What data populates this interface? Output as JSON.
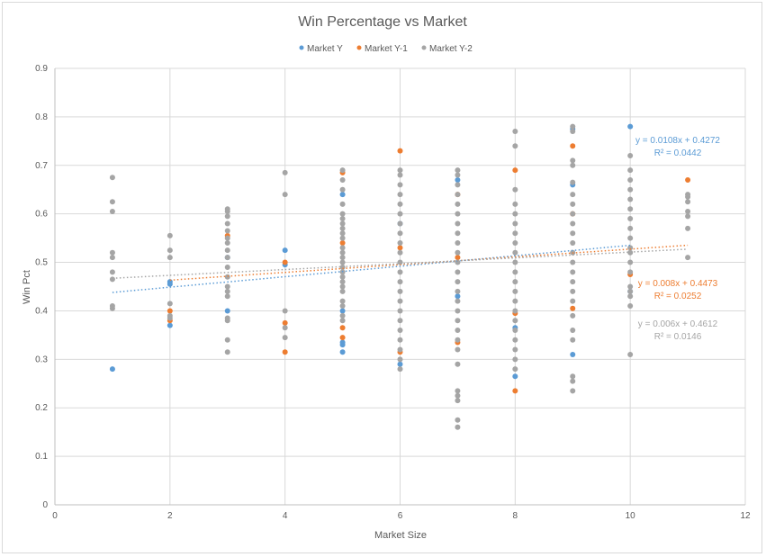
{
  "chart_data": {
    "type": "scatter",
    "title": "Win Percentage vs Market",
    "xlabel": "Market Size",
    "ylabel": "Win Pct",
    "xlim": [
      0,
      12
    ],
    "ylim": [
      0,
      0.9
    ],
    "xticks": [
      0,
      2,
      4,
      6,
      8,
      10,
      12
    ],
    "yticks": [
      0,
      0.1,
      0.2,
      0.3,
      0.4,
      0.5,
      0.6,
      0.7,
      0.8,
      0.9
    ],
    "x_tick_labels": [
      "0",
      "2",
      "4",
      "6",
      "8",
      "10",
      "12"
    ],
    "y_tick_labels": [
      "0",
      "0.1",
      "0.2",
      "0.3",
      "0.4",
      "0.5",
      "0.6",
      "0.7",
      "0.8",
      "0.9"
    ],
    "grid": true,
    "legend_position": "top",
    "series": [
      {
        "name": "Market Y",
        "color": "#5b9bd5",
        "points": [
          [
            1,
            0.28
          ],
          [
            2,
            0.37
          ],
          [
            2,
            0.46
          ],
          [
            2,
            0.455
          ],
          [
            3,
            0.4
          ],
          [
            3,
            0.51
          ],
          [
            4,
            0.525
          ],
          [
            4,
            0.495
          ],
          [
            5,
            0.315
          ],
          [
            5,
            0.33
          ],
          [
            5,
            0.335
          ],
          [
            5,
            0.4
          ],
          [
            5,
            0.64
          ],
          [
            6,
            0.29
          ],
          [
            6,
            0.58
          ],
          [
            7,
            0.43
          ],
          [
            7,
            0.67
          ],
          [
            8,
            0.265
          ],
          [
            8,
            0.365
          ],
          [
            9,
            0.31
          ],
          [
            9,
            0.66
          ],
          [
            9,
            0.775
          ],
          [
            10,
            0.44
          ],
          [
            10,
            0.78
          ]
        ],
        "trend": {
          "slope": 0.0108,
          "intercept": 0.4272,
          "equation": "y = 0.0108x + 0.4272",
          "r2": "R² = 0.0442"
        }
      },
      {
        "name": "Market Y-1",
        "color": "#ed7d31",
        "points": [
          [
            2,
            0.4
          ],
          [
            2,
            0.38
          ],
          [
            3,
            0.555
          ],
          [
            4,
            0.315
          ],
          [
            4,
            0.375
          ],
          [
            4,
            0.5
          ],
          [
            5,
            0.345
          ],
          [
            5,
            0.365
          ],
          [
            5,
            0.54
          ],
          [
            5,
            0.685
          ],
          [
            6,
            0.315
          ],
          [
            6,
            0.53
          ],
          [
            6,
            0.73
          ],
          [
            7,
            0.335
          ],
          [
            7,
            0.51
          ],
          [
            7,
            0.64
          ],
          [
            8,
            0.235
          ],
          [
            8,
            0.395
          ],
          [
            8,
            0.69
          ],
          [
            9,
            0.405
          ],
          [
            9,
            0.6
          ],
          [
            9,
            0.74
          ],
          [
            10,
            0.475
          ],
          [
            11,
            0.67
          ]
        ],
        "trend": {
          "slope": 0.008,
          "intercept": 0.4473,
          "equation": "y = 0.008x + 0.4473",
          "r2": "R² = 0.0252"
        }
      },
      {
        "name": "Market Y-2",
        "color": "#a5a5a5",
        "points": [
          [
            1,
            0.405
          ],
          [
            1,
            0.41
          ],
          [
            1,
            0.465
          ],
          [
            1,
            0.48
          ],
          [
            1,
            0.51
          ],
          [
            1,
            0.52
          ],
          [
            1,
            0.605
          ],
          [
            1,
            0.625
          ],
          [
            1,
            0.675
          ],
          [
            2,
            0.385
          ],
          [
            2,
            0.39
          ],
          [
            2,
            0.415
          ],
          [
            2,
            0.51
          ],
          [
            2,
            0.525
          ],
          [
            2,
            0.555
          ],
          [
            3,
            0.315
          ],
          [
            3,
            0.34
          ],
          [
            3,
            0.38
          ],
          [
            3,
            0.385
          ],
          [
            3,
            0.43
          ],
          [
            3,
            0.44
          ],
          [
            3,
            0.45
          ],
          [
            3,
            0.47
          ],
          [
            3,
            0.49
          ],
          [
            3,
            0.51
          ],
          [
            3,
            0.525
          ],
          [
            3,
            0.54
          ],
          [
            3,
            0.55
          ],
          [
            3,
            0.565
          ],
          [
            3,
            0.58
          ],
          [
            3,
            0.595
          ],
          [
            3,
            0.605
          ],
          [
            3,
            0.61
          ],
          [
            4,
            0.345
          ],
          [
            4,
            0.365
          ],
          [
            4,
            0.4
          ],
          [
            4,
            0.64
          ],
          [
            4,
            0.685
          ],
          [
            5,
            0.38
          ],
          [
            5,
            0.39
          ],
          [
            5,
            0.41
          ],
          [
            5,
            0.42
          ],
          [
            5,
            0.44
          ],
          [
            5,
            0.45
          ],
          [
            5,
            0.46
          ],
          [
            5,
            0.47
          ],
          [
            5,
            0.48
          ],
          [
            5,
            0.49
          ],
          [
            5,
            0.5
          ],
          [
            5,
            0.51
          ],
          [
            5,
            0.52
          ],
          [
            5,
            0.53
          ],
          [
            5,
            0.55
          ],
          [
            5,
            0.56
          ],
          [
            5,
            0.57
          ],
          [
            5,
            0.58
          ],
          [
            5,
            0.59
          ],
          [
            5,
            0.6
          ],
          [
            5,
            0.62
          ],
          [
            5,
            0.65
          ],
          [
            5,
            0.67
          ],
          [
            5,
            0.69
          ],
          [
            6,
            0.28
          ],
          [
            6,
            0.3
          ],
          [
            6,
            0.32
          ],
          [
            6,
            0.34
          ],
          [
            6,
            0.36
          ],
          [
            6,
            0.38
          ],
          [
            6,
            0.4
          ],
          [
            6,
            0.42
          ],
          [
            6,
            0.44
          ],
          [
            6,
            0.46
          ],
          [
            6,
            0.48
          ],
          [
            6,
            0.5
          ],
          [
            6,
            0.52
          ],
          [
            6,
            0.54
          ],
          [
            6,
            0.56
          ],
          [
            6,
            0.58
          ],
          [
            6,
            0.6
          ],
          [
            6,
            0.62
          ],
          [
            6,
            0.64
          ],
          [
            6,
            0.66
          ],
          [
            6,
            0.68
          ],
          [
            6,
            0.69
          ],
          [
            7,
            0.16
          ],
          [
            7,
            0.175
          ],
          [
            7,
            0.215
          ],
          [
            7,
            0.225
          ],
          [
            7,
            0.235
          ],
          [
            7,
            0.29
          ],
          [
            7,
            0.32
          ],
          [
            7,
            0.34
          ],
          [
            7,
            0.36
          ],
          [
            7,
            0.38
          ],
          [
            7,
            0.4
          ],
          [
            7,
            0.42
          ],
          [
            7,
            0.44
          ],
          [
            7,
            0.46
          ],
          [
            7,
            0.48
          ],
          [
            7,
            0.5
          ],
          [
            7,
            0.52
          ],
          [
            7,
            0.54
          ],
          [
            7,
            0.56
          ],
          [
            7,
            0.58
          ],
          [
            7,
            0.6
          ],
          [
            7,
            0.62
          ],
          [
            7,
            0.64
          ],
          [
            7,
            0.66
          ],
          [
            7,
            0.68
          ],
          [
            7,
            0.69
          ],
          [
            8,
            0.28
          ],
          [
            8,
            0.3
          ],
          [
            8,
            0.32
          ],
          [
            8,
            0.34
          ],
          [
            8,
            0.36
          ],
          [
            8,
            0.38
          ],
          [
            8,
            0.4
          ],
          [
            8,
            0.42
          ],
          [
            8,
            0.44
          ],
          [
            8,
            0.46
          ],
          [
            8,
            0.48
          ],
          [
            8,
            0.5
          ],
          [
            8,
            0.52
          ],
          [
            8,
            0.54
          ],
          [
            8,
            0.56
          ],
          [
            8,
            0.58
          ],
          [
            8,
            0.6
          ],
          [
            8,
            0.62
          ],
          [
            8,
            0.65
          ],
          [
            8,
            0.74
          ],
          [
            8,
            0.77
          ],
          [
            9,
            0.235
          ],
          [
            9,
            0.255
          ],
          [
            9,
            0.265
          ],
          [
            9,
            0.34
          ],
          [
            9,
            0.36
          ],
          [
            9,
            0.39
          ],
          [
            9,
            0.42
          ],
          [
            9,
            0.44
          ],
          [
            9,
            0.46
          ],
          [
            9,
            0.48
          ],
          [
            9,
            0.5
          ],
          [
            9,
            0.52
          ],
          [
            9,
            0.54
          ],
          [
            9,
            0.56
          ],
          [
            9,
            0.58
          ],
          [
            9,
            0.6
          ],
          [
            9,
            0.62
          ],
          [
            9,
            0.64
          ],
          [
            9,
            0.665
          ],
          [
            9,
            0.7
          ],
          [
            9,
            0.71
          ],
          [
            9,
            0.77
          ],
          [
            9,
            0.78
          ],
          [
            10,
            0.31
          ],
          [
            10,
            0.41
          ],
          [
            10,
            0.43
          ],
          [
            10,
            0.44
          ],
          [
            10,
            0.45
          ],
          [
            10,
            0.48
          ],
          [
            10,
            0.5
          ],
          [
            10,
            0.52
          ],
          [
            10,
            0.53
          ],
          [
            10,
            0.55
          ],
          [
            10,
            0.57
          ],
          [
            10,
            0.59
          ],
          [
            10,
            0.61
          ],
          [
            10,
            0.63
          ],
          [
            10,
            0.65
          ],
          [
            10,
            0.67
          ],
          [
            10,
            0.69
          ],
          [
            10,
            0.72
          ],
          [
            11,
            0.51
          ],
          [
            11,
            0.57
          ],
          [
            11,
            0.595
          ],
          [
            11,
            0.605
          ],
          [
            11,
            0.625
          ],
          [
            11,
            0.635
          ],
          [
            11,
            0.64
          ]
        ],
        "trend": {
          "slope": 0.006,
          "intercept": 0.4612,
          "equation": "y = 0.006x + 0.4612",
          "r2": "R² = 0.0146"
        }
      }
    ]
  }
}
